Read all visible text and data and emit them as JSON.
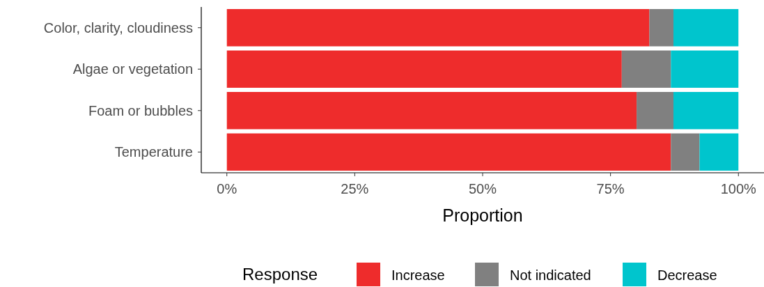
{
  "chart_data": {
    "type": "bar",
    "orientation": "horizontal",
    "stacked": true,
    "categories": [
      "Color, clarity, cloudiness",
      "Algae or vegetation",
      "Foam or bubbles",
      "Temperature"
    ],
    "series": [
      {
        "name": "Increase",
        "color": "#ee2c2c",
        "values": [
          82.6,
          77.2,
          80.1,
          86.8
        ]
      },
      {
        "name": "Not indicated",
        "color": "#808080",
        "values": [
          4.7,
          9.6,
          7.2,
          5.6
        ]
      },
      {
        "name": "Decrease",
        "color": "#00c5cd",
        "values": [
          12.7,
          13.2,
          12.7,
          7.6
        ]
      }
    ],
    "xlabel": "Proportion",
    "legend_title": "Response",
    "legend": "bottom",
    "grid": false,
    "xlim": [
      -5,
      105
    ],
    "xticks": [
      {
        "value": 0,
        "label": "0%"
      },
      {
        "value": 25,
        "label": "25%"
      },
      {
        "value": 50,
        "label": "50%"
      },
      {
        "value": 75,
        "label": "75%"
      },
      {
        "value": 100,
        "label": "100%"
      }
    ]
  }
}
